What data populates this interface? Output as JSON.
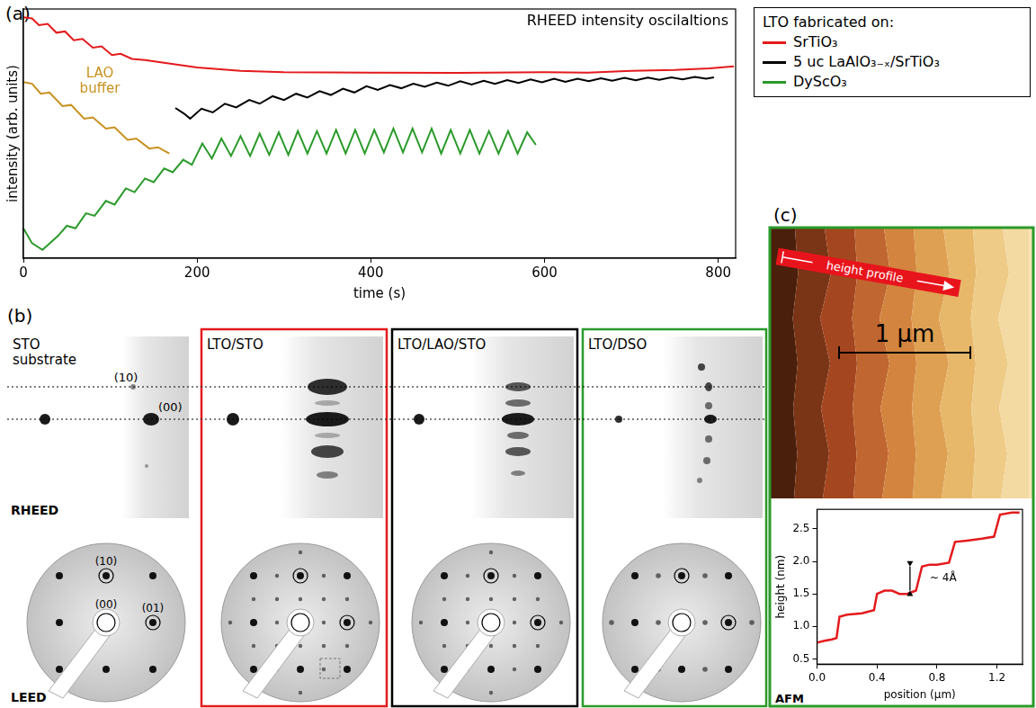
{
  "chart_data": [
    {
      "panel": "(a)",
      "type": "line",
      "title": "RHEED intensity oscilaltions",
      "x_label": "time (s)",
      "y_label": "intensity (arb. units)",
      "xlim": [
        0,
        820
      ],
      "xticks": [
        0,
        200,
        400,
        600,
        800
      ],
      "ylim": [
        0,
        10
      ],
      "tick_labels": "x",
      "grid": false,
      "legend": "right",
      "legend_title": "LTO fabricated on:",
      "series": [
        {
          "name": "SrTiO₃",
          "color": "#e41a1c",
          "x": [
            0,
            10,
            18,
            28,
            38,
            48,
            58,
            68,
            80,
            90,
            102,
            112,
            125,
            140,
            160,
            200,
            250,
            300,
            400,
            500,
            600,
            650,
            700,
            750,
            790,
            818
          ],
          "values": [
            9.67,
            9.62,
            9.35,
            9.4,
            9.05,
            9.1,
            8.75,
            8.8,
            8.45,
            8.5,
            8.15,
            8.2,
            8.0,
            7.95,
            7.85,
            7.65,
            7.52,
            7.46,
            7.45,
            7.44,
            7.46,
            7.45,
            7.52,
            7.55,
            7.62,
            7.7
          ]
        },
        {
          "color": "#c8911e",
          "x": [
            0,
            10,
            20,
            30,
            45,
            55,
            70,
            80,
            95,
            105,
            120,
            130,
            145,
            155,
            168
          ],
          "values": [
            7.07,
            7.0,
            6.6,
            6.65,
            6.1,
            6.15,
            5.6,
            5.65,
            5.2,
            5.25,
            4.75,
            4.8,
            4.4,
            4.45,
            4.2
          ]
        },
        {
          "name": "5 uc LaAlO₃₋ₓ/SrTiO₃",
          "color": "#000000",
          "x": [
            175,
            185,
            192,
            205,
            218,
            232,
            245,
            260,
            272,
            287,
            300,
            314,
            327,
            341,
            354,
            368,
            381,
            395,
            408,
            422,
            435,
            449,
            462,
            476,
            489,
            503,
            516,
            530,
            543,
            557,
            570,
            584,
            597,
            611,
            624,
            638,
            651,
            665,
            678,
            692,
            705,
            719,
            732,
            746,
            759,
            773,
            786,
            795
          ],
          "values": [
            6.03,
            5.8,
            5.6,
            6.0,
            5.85,
            6.2,
            6.05,
            6.35,
            6.2,
            6.5,
            6.35,
            6.6,
            6.45,
            6.7,
            6.55,
            6.8,
            6.65,
            6.9,
            6.75,
            6.95,
            6.82,
            7.0,
            6.88,
            7.05,
            6.92,
            7.1,
            6.97,
            7.12,
            7.0,
            7.15,
            7.03,
            7.17,
            7.06,
            7.2,
            7.08,
            7.2,
            7.1,
            7.22,
            7.12,
            7.24,
            7.14,
            7.25,
            7.16,
            7.26,
            7.18,
            7.27,
            7.2,
            7.26
          ]
        },
        {
          "name": "DyScO₃",
          "color": "#2a9a2a",
          "x": [
            0,
            10,
            22,
            40,
            50,
            60,
            72,
            82,
            95,
            105,
            118,
            128,
            140,
            150,
            162,
            172,
            184,
            194,
            206,
            217,
            228,
            239,
            250,
            261,
            272,
            283,
            294,
            305,
            316,
            327,
            338,
            349,
            360,
            371,
            382,
            393,
            404,
            415,
            426,
            437,
            448,
            459,
            470,
            481,
            492,
            503,
            514,
            525,
            536,
            547,
            558,
            569,
            580,
            590
          ],
          "values": [
            1.2,
            0.6,
            0.33,
            0.9,
            1.3,
            1.2,
            1.8,
            1.7,
            2.3,
            2.15,
            2.8,
            2.65,
            3.2,
            3.05,
            3.6,
            3.45,
            3.95,
            3.75,
            4.6,
            4.0,
            4.8,
            4.1,
            4.9,
            4.1,
            5.0,
            4.15,
            5.05,
            4.15,
            5.1,
            4.2,
            5.1,
            4.2,
            5.15,
            4.2,
            5.15,
            4.2,
            5.15,
            4.25,
            5.2,
            4.25,
            5.2,
            4.25,
            5.2,
            4.2,
            5.15,
            4.2,
            5.15,
            4.2,
            5.1,
            4.2,
            5.1,
            4.2,
            5.05,
            4.55
          ]
        }
      ],
      "annotations": [
        {
          "text": "LAO buffer",
          "color": "#c8911e",
          "x": 88,
          "y": 7.1
        }
      ]
    },
    {
      "panel": "(c)",
      "type": "line",
      "x_label": "position (µm)",
      "y_label": "height (nm)",
      "xlim": [
        0,
        1.37
      ],
      "xticks": [
        {
          "value": 0,
          "label": "0.0"
        },
        0.4,
        0.8,
        1.2
      ],
      "ylim": [
        0.42,
        2.8
      ],
      "yticks": [
        0.5,
        {
          "value": 1,
          "label": "1.0"
        },
        1.5,
        {
          "value": 2,
          "label": "2.0"
        },
        2.5
      ],
      "grid": false,
      "series": [
        {
          "color": "#e41a1c",
          "x": [
            0,
            0.05,
            0.1,
            0.13,
            0.15,
            0.2,
            0.3,
            0.38,
            0.4,
            0.45,
            0.5,
            0.55,
            0.6,
            0.66,
            0.7,
            0.75,
            0.8,
            0.88,
            0.92,
            1.0,
            1.1,
            1.18,
            1.22,
            1.3,
            1.35
          ],
          "values": [
            0.75,
            0.78,
            0.8,
            0.82,
            1.15,
            1.18,
            1.2,
            1.25,
            1.5,
            1.55,
            1.55,
            1.5,
            1.5,
            1.55,
            1.92,
            1.95,
            1.95,
            1.98,
            2.3,
            2.32,
            2.35,
            2.38,
            2.72,
            2.75,
            2.75
          ]
        }
      ],
      "annotations": [
        {
          "text": "~ 4Å",
          "x": 0.62,
          "y": [
            1.55,
            1.92
          ]
        }
      ]
    }
  ],
  "panel_b": {
    "label": "(b)",
    "row_labels": [
      "RHEED",
      "LEED"
    ],
    "rheed_spot_labels": [
      "(10)",
      "(00)"
    ],
    "leed_spot_labels": [
      "(10)",
      "(00)",
      "(01)"
    ],
    "columns": [
      {
        "title": "STO substrate"
      },
      {
        "title": "LTO/STO",
        "color": "#e41a1c"
      },
      {
        "title": "LTO/LAO/STO",
        "color": "#000000"
      },
      {
        "title": "LTO/DSO",
        "color": "#2a9a2a"
      }
    ]
  },
  "panel_c_image": {
    "label": "AFM",
    "profile_label": "height profile",
    "scale_bar": "1 µm",
    "color": "#2a9a2a"
  }
}
